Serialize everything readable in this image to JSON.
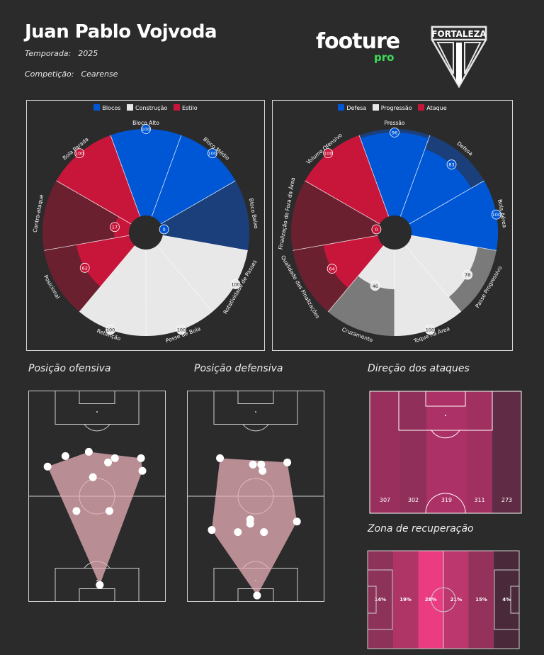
{
  "header": {
    "player_name": "Juan Pablo Vojvoda",
    "season_label": "Temporada:",
    "season_value": "2025",
    "competition_label": "Competição:",
    "competition_value": "Cearense",
    "brand_name": "footure",
    "brand_sub": "pro",
    "club_name": "FORTALEZA"
  },
  "colors": {
    "background": "#2b2b2b",
    "blocos": "#0057d6",
    "construcao": "#e8e8e8",
    "estilo": "#c8163a",
    "defesa": "#0057d6",
    "progressao": "#e8e8e8",
    "ataque": "#c8163a"
  },
  "chart_data": [
    {
      "type": "pie",
      "variant": "radar-pizza",
      "legend": [
        "Blocos",
        "Construção",
        "Estilo"
      ],
      "legend_colors": [
        "#0057d6",
        "#e8e8e8",
        "#c8163a"
      ],
      "slices": [
        {
          "label": "Bloco Alto",
          "value": 100,
          "group": "Blocos"
        },
        {
          "label": "Bloco Médio",
          "value": 100,
          "group": "Blocos"
        },
        {
          "label": "Bloco Baixo",
          "value": 0,
          "group": "Blocos"
        },
        {
          "label": "Rotatividade de Passes",
          "value": 100,
          "group": "Construção"
        },
        {
          "label": "Posse de Bola",
          "value": 100,
          "group": "Construção"
        },
        {
          "label": "Retenção",
          "value": 100,
          "group": "Construção"
        },
        {
          "label": "Posicional",
          "value": 62,
          "group": "Estilo"
        },
        {
          "label": "Contra-ataque",
          "value": 17,
          "group": "Estilo"
        },
        {
          "label": "Bola Parada",
          "value": 100,
          "group": "Estilo"
        }
      ]
    },
    {
      "type": "pie",
      "variant": "radar-pizza",
      "legend": [
        "Defesa",
        "Progressão",
        "Ataque"
      ],
      "legend_colors": [
        "#0057d6",
        "#e8e8e8",
        "#c8163a"
      ],
      "slices": [
        {
          "label": "Pressão",
          "value": 96,
          "group": "Defesa"
        },
        {
          "label": "Defesa",
          "value": 83,
          "group": "Defesa"
        },
        {
          "label": "Bola Aérea",
          "value": 100,
          "group": "Defesa"
        },
        {
          "label": "Passe Progressivo",
          "value": 78,
          "group": "Progressão"
        },
        {
          "label": "Toque na Área",
          "value": 100,
          "group": "Progressão"
        },
        {
          "label": "Cruzamento",
          "value": 46,
          "group": "Progressão"
        },
        {
          "label": "Qualidade das Finalizações",
          "value": 64,
          "group": "Ataque"
        },
        {
          "label": "Finalização de Fora da Área",
          "value": 0,
          "group": "Ataque"
        },
        {
          "label": "Volume Ofensivo",
          "value": 100,
          "group": "Ataque"
        }
      ]
    },
    {
      "type": "scatter",
      "title": "Posição ofensiva",
      "x_range": [
        0,
        100
      ],
      "y_range": [
        0,
        100
      ],
      "points": [
        {
          "x": 14,
          "y": 64
        },
        {
          "x": 27,
          "y": 69
        },
        {
          "x": 44,
          "y": 71
        },
        {
          "x": 58,
          "y": 66
        },
        {
          "x": 63,
          "y": 68
        },
        {
          "x": 82,
          "y": 68
        },
        {
          "x": 83,
          "y": 62
        },
        {
          "x": 47,
          "y": 59
        },
        {
          "x": 35,
          "y": 43
        },
        {
          "x": 59,
          "y": 43
        },
        {
          "x": 52,
          "y": 8
        }
      ],
      "hull": [
        [
          14,
          64
        ],
        [
          44,
          71
        ],
        [
          82,
          68
        ],
        [
          83,
          62
        ],
        [
          52,
          8
        ]
      ]
    },
    {
      "type": "scatter",
      "title": "Posição defensiva",
      "x_range": [
        0,
        100
      ],
      "y_range": [
        0,
        100
      ],
      "points": [
        {
          "x": 24,
          "y": 68
        },
        {
          "x": 48,
          "y": 65
        },
        {
          "x": 54,
          "y": 65
        },
        {
          "x": 55,
          "y": 62
        },
        {
          "x": 73,
          "y": 66
        },
        {
          "x": 46,
          "y": 39
        },
        {
          "x": 46,
          "y": 37
        },
        {
          "x": 37,
          "y": 33
        },
        {
          "x": 56,
          "y": 33
        },
        {
          "x": 80,
          "y": 38
        },
        {
          "x": 18,
          "y": 34
        },
        {
          "x": 51,
          "y": 3
        }
      ],
      "hull": [
        [
          24,
          68
        ],
        [
          73,
          66
        ],
        [
          80,
          38
        ],
        [
          51,
          3
        ],
        [
          18,
          34
        ]
      ]
    },
    {
      "type": "heatmap",
      "title": "Direção dos ataques",
      "categories": [
        "L1",
        "L2",
        "C",
        "R2",
        "R1"
      ],
      "values": [
        307,
        302,
        319,
        311,
        273
      ]
    },
    {
      "type": "heatmap",
      "title": "Zona de recuperação",
      "categories": [
        "Z1",
        "Z2",
        "Z3",
        "Z4",
        "Z5",
        "Z6"
      ],
      "values": [
        "14%",
        "19%",
        "28%",
        "21%",
        "15%",
        "4%"
      ]
    }
  ]
}
